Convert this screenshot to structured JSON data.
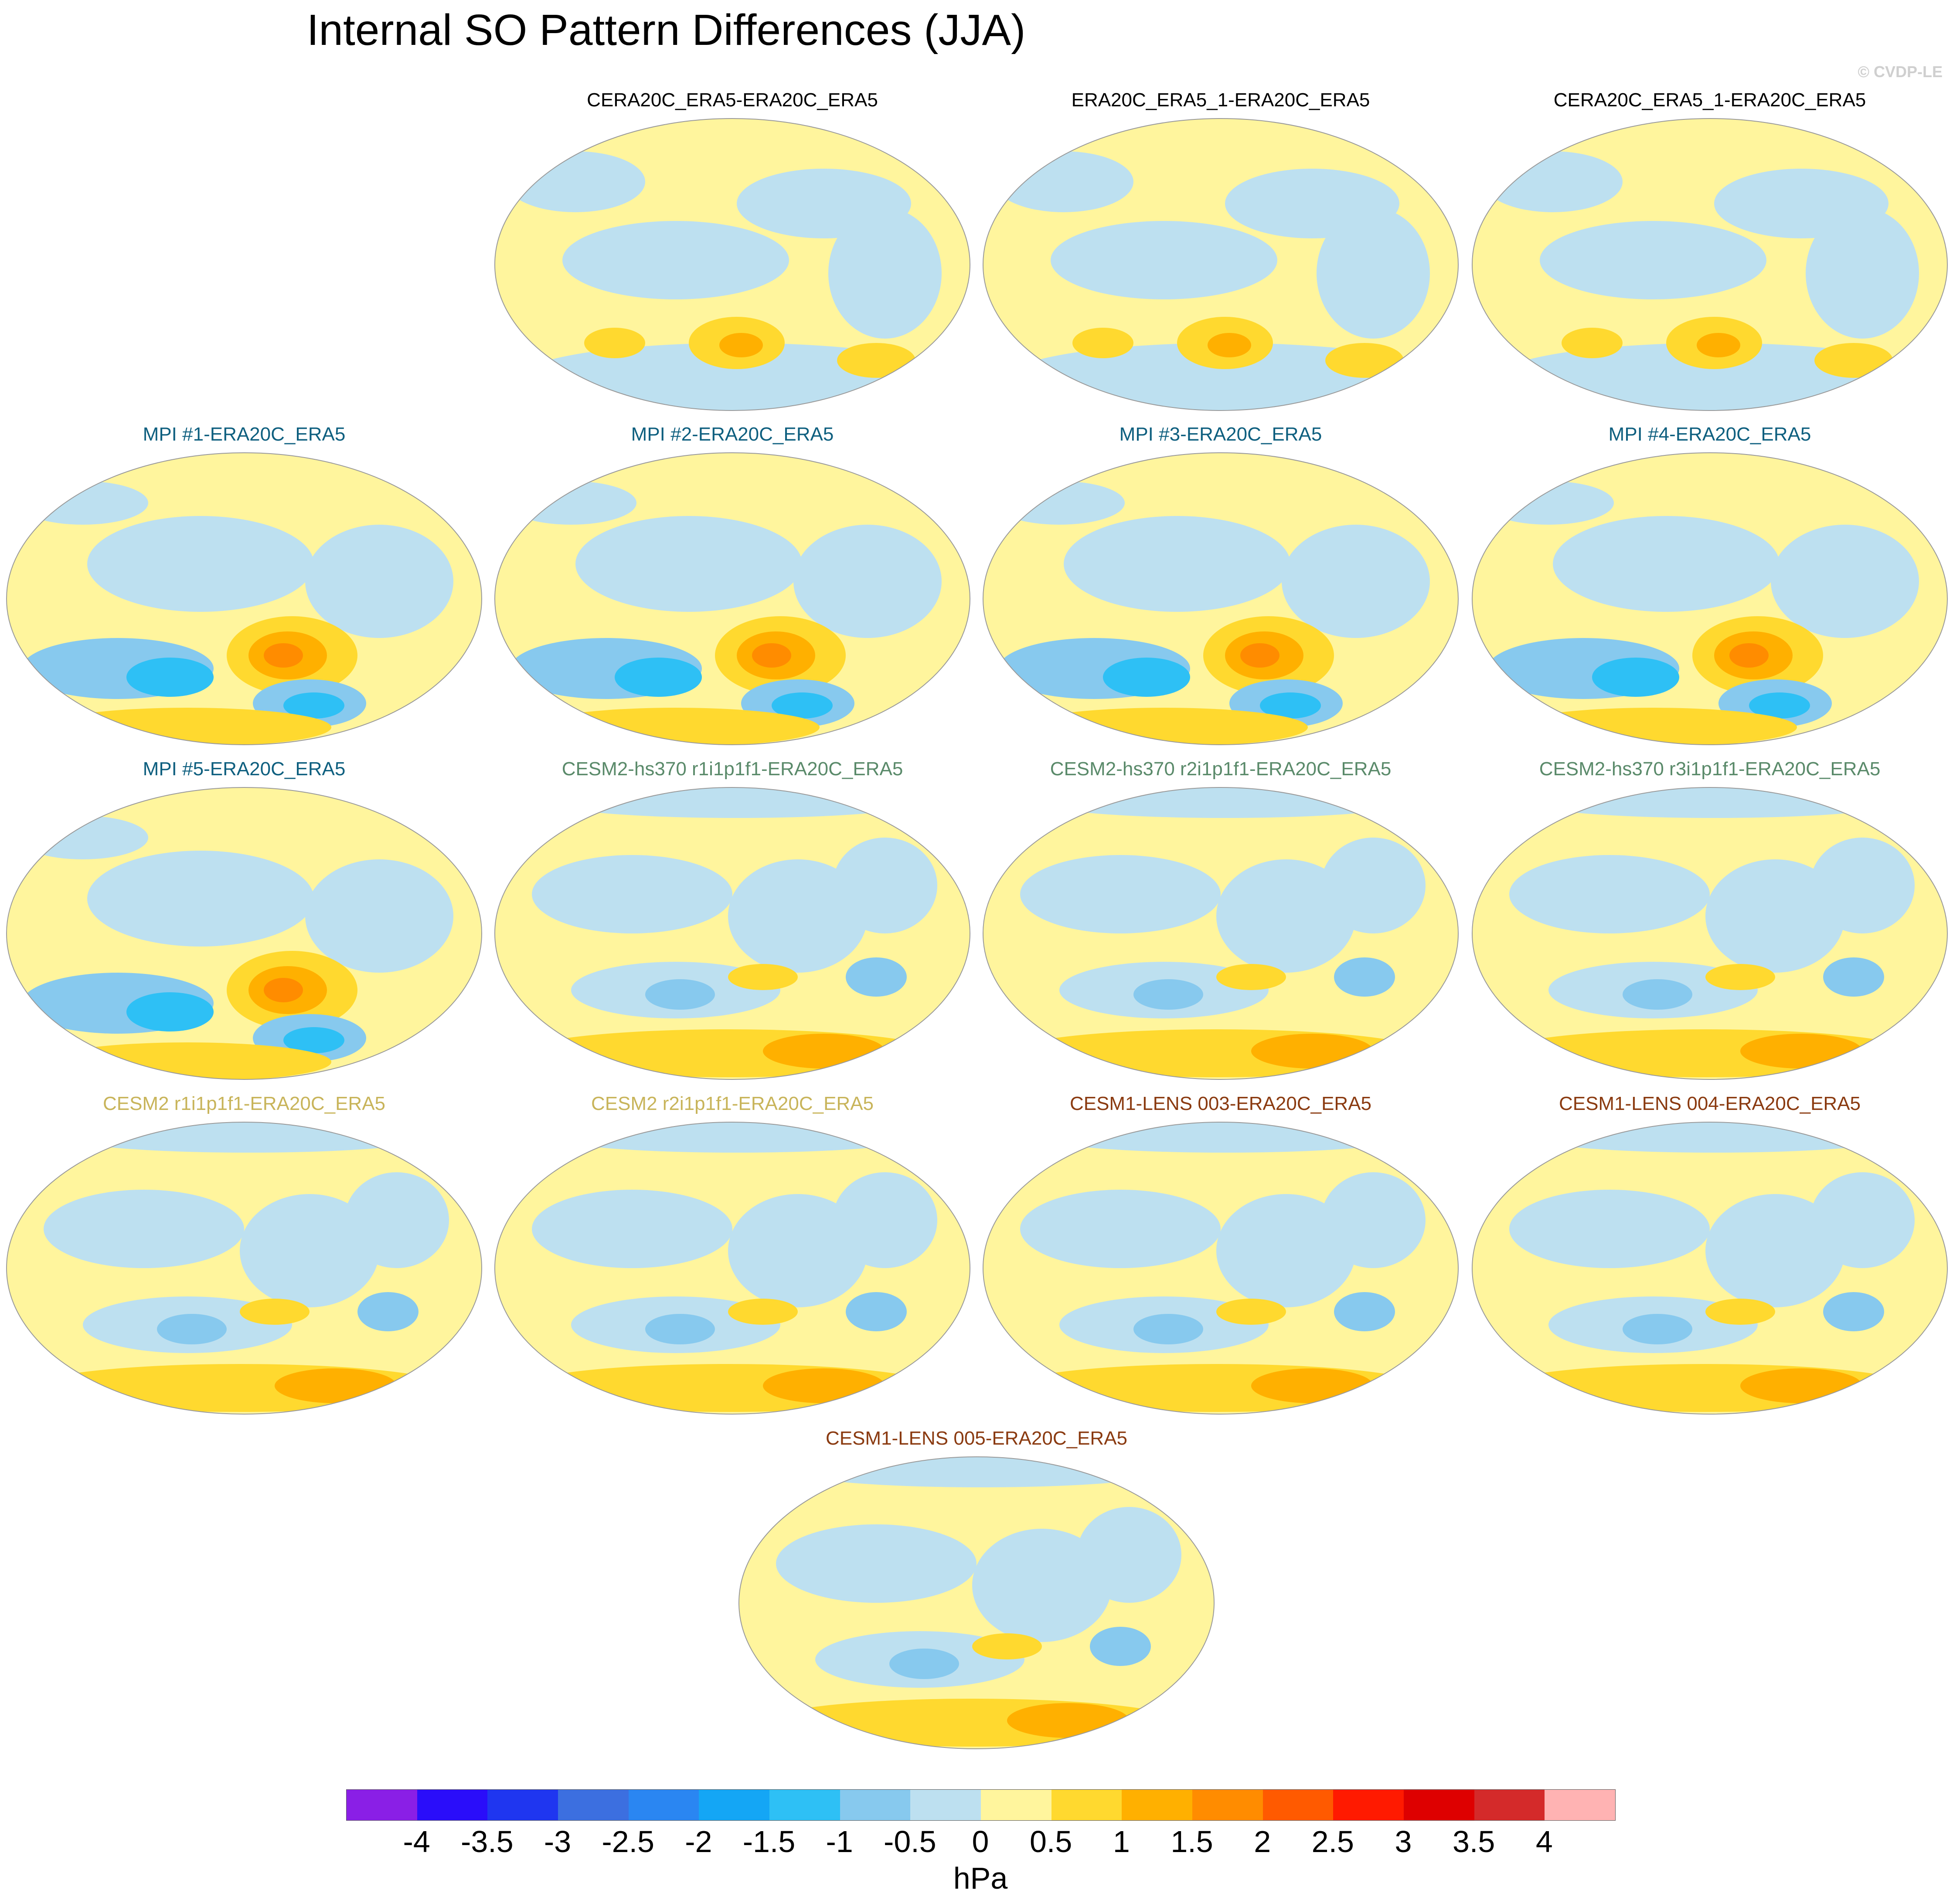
{
  "figure": {
    "title": "Internal SO Pattern Differences (JJA)",
    "credit": "© CVDP-LE"
  },
  "panels": [
    {
      "label": "CERA20C_ERA5-ERA20C_ERA5",
      "label_color": "#000000",
      "pattern": "reanalysis"
    },
    {
      "label": "ERA20C_ERA5_1-ERA20C_ERA5",
      "label_color": "#000000",
      "pattern": "reanalysis"
    },
    {
      "label": "CERA20C_ERA5_1-ERA20C_ERA5",
      "label_color": "#000000",
      "pattern": "reanalysis"
    },
    {
      "label": "MPI #1-ERA20C_ERA5",
      "label_color": "#0e5f7f",
      "pattern": "mpi"
    },
    {
      "label": "MPI #2-ERA20C_ERA5",
      "label_color": "#0e5f7f",
      "pattern": "mpi"
    },
    {
      "label": "MPI #3-ERA20C_ERA5",
      "label_color": "#0e5f7f",
      "pattern": "mpi"
    },
    {
      "label": "MPI #4-ERA20C_ERA5",
      "label_color": "#0e5f7f",
      "pattern": "mpi"
    },
    {
      "label": "MPI #5-ERA20C_ERA5",
      "label_color": "#0e5f7f",
      "pattern": "mpi"
    },
    {
      "label": "CESM2-hs370 r1i1p1f1-ERA20C_ERA5",
      "label_color": "#5a8a6a",
      "pattern": "cesm"
    },
    {
      "label": "CESM2-hs370 r2i1p1f1-ERA20C_ERA5",
      "label_color": "#5a8a6a",
      "pattern": "cesm"
    },
    {
      "label": "CESM2-hs370 r3i1p1f1-ERA20C_ERA5",
      "label_color": "#5a8a6a",
      "pattern": "cesm"
    },
    {
      "label": "CESM2 r1i1p1f1-ERA20C_ERA5",
      "label_color": "#c8b45a",
      "pattern": "cesm"
    },
    {
      "label": "CESM2 r2i1p1f1-ERA20C_ERA5",
      "label_color": "#c8b45a",
      "pattern": "cesm"
    },
    {
      "label": "CESM1-LENS 003-ERA20C_ERA5",
      "label_color": "#8a3a10",
      "pattern": "cesm"
    },
    {
      "label": "CESM1-LENS 004-ERA20C_ERA5",
      "label_color": "#8a3a10",
      "pattern": "cesm"
    },
    {
      "label": "CESM1-LENS 005-ERA20C_ERA5",
      "label_color": "#8a3a10",
      "pattern": "cesm"
    }
  ],
  "colorbar": {
    "units": "hPa",
    "colors": [
      "#8a1fe6",
      "#2a0dfa",
      "#1f36f0",
      "#3c6fe0",
      "#2a86f2",
      "#14a6f5",
      "#2ec0f5",
      "#87c9ee",
      "#bde0f0",
      "#fff59d",
      "#ffd92f",
      "#ffb000",
      "#ff8c00",
      "#ff5a00",
      "#ff1a00",
      "#de0000",
      "#d42a2a",
      "#ffb3b3"
    ],
    "labels": [
      "-4",
      "-3.5",
      "-3",
      "-2.5",
      "-2",
      "-1.5",
      "-1",
      "-0.5",
      "0",
      "0.5",
      "1",
      "1.5",
      "2",
      "2.5",
      "3",
      "3.5",
      "4"
    ]
  }
}
